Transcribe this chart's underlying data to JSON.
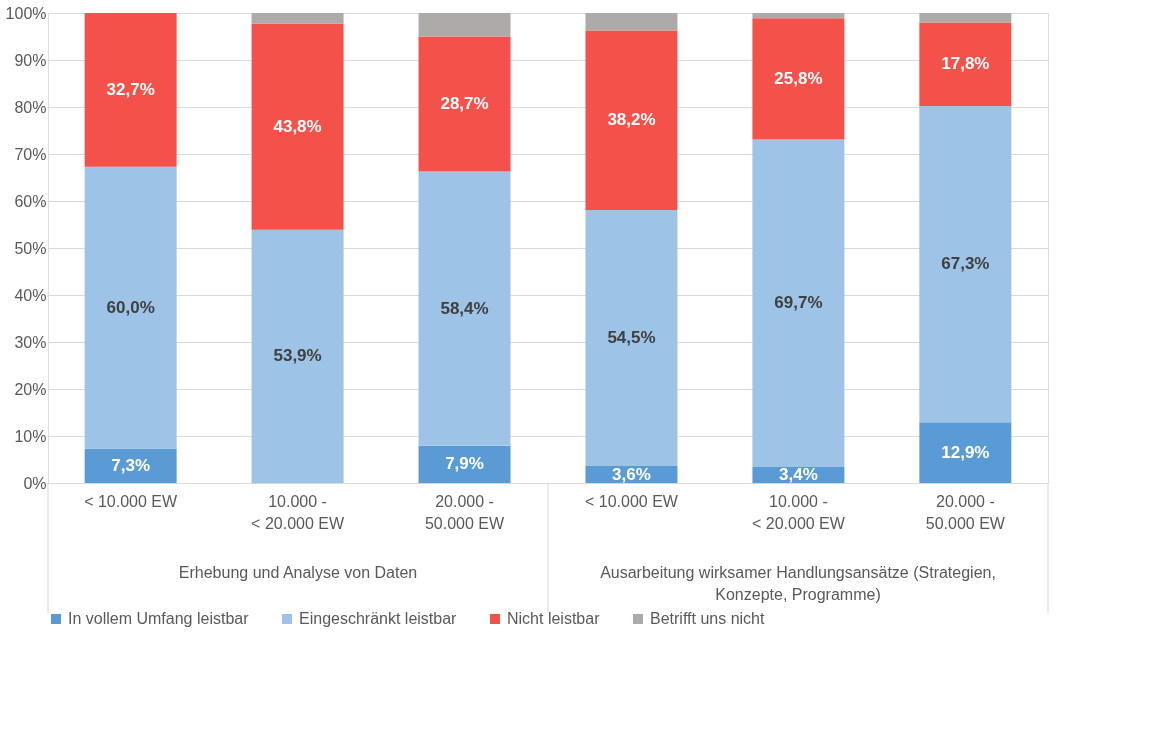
{
  "chart_data": {
    "type": "bar",
    "stacked": true,
    "categories": [
      "< 10.000 EW",
      "10.000 - < 20.000 EW",
      "20.000 - 50.000 EW",
      "< 10.000 EW",
      "10.000 - < 20.000 EW",
      "20.000 - 50.000 EW"
    ],
    "series": [
      {
        "name": "In vollem Umfang leistbar",
        "color": "#5b9bd5",
        "values": [
          7.3,
          0,
          7.9,
          3.6,
          3.4,
          12.9
        ],
        "value_labels": [
          "7,3%",
          null,
          "7,9%",
          "3,6%",
          "3,4%",
          "12,9%"
        ]
      },
      {
        "name": "Eingeschränkt leistbar",
        "color": "#9dc3e6",
        "values": [
          60.0,
          53.9,
          58.4,
          54.5,
          69.7,
          67.3
        ],
        "value_labels": [
          "60,0%",
          "53,9%",
          "58,4%",
          "54,5%",
          "69,7%",
          "67,3%"
        ]
      },
      {
        "name": "Nicht leistbar",
        "color": "#f4514a",
        "values": [
          32.7,
          43.8,
          28.7,
          38.2,
          25.8,
          17.8
        ],
        "value_labels": [
          "32,7%",
          "43,8%",
          "28,7%",
          "38,2%",
          "25,8%",
          "17,8%"
        ]
      },
      {
        "name": "Betrifft uns nicht",
        "color": "#aeaaaa",
        "values": [
          0,
          2.3,
          5.0,
          3.7,
          1.1,
          2.0
        ],
        "value_labels": [
          null,
          null,
          null,
          null,
          null,
          null
        ]
      }
    ],
    "ylim": [
      0,
      100
    ],
    "yticks": [
      {
        "value": 0,
        "label": "0%"
      },
      {
        "value": 10,
        "label": "10%"
      },
      {
        "value": 20,
        "label": "20%"
      },
      {
        "value": 30,
        "label": "30%"
      },
      {
        "value": 40,
        "label": "40%"
      },
      {
        "value": 50,
        "label": "50%"
      },
      {
        "value": 60,
        "label": "60%"
      },
      {
        "value": 70,
        "label": "70%"
      },
      {
        "value": 80,
        "label": "80%"
      },
      {
        "value": 90,
        "label": "90%"
      },
      {
        "value": 100,
        "label": "100%"
      }
    ],
    "grid": "y",
    "legend": "bottom",
    "annotations": [
      "Erhebung und Analyse von Daten",
      "Ausarbeitung wirksamer Handlungsansätze (Strategien, Konzepte, Programme)"
    ]
  }
}
